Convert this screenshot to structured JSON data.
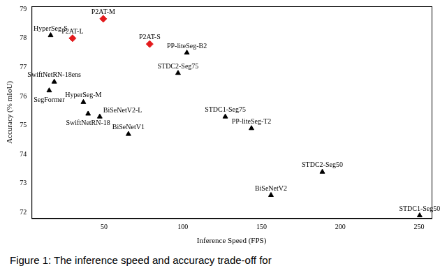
{
  "chart_data": {
    "type": "scatter",
    "x_label": "Inference Speed (FPS)",
    "y_label": "Accuracy (% mIoU)",
    "caption": "Figure 1: The inference speed and accuracy trade-off for",
    "xlim": [
      4,
      258
    ],
    "xticks": [
      50,
      100,
      150,
      200,
      250
    ],
    "ylim": [
      71.8,
      79.1
    ],
    "yticks": [
      72,
      73,
      74,
      75,
      76,
      77,
      78,
      79
    ],
    "grid": false,
    "points": [
      {
        "label": "HyperSeg-S",
        "x": 16.1,
        "y": 78.1,
        "color": "#000000",
        "marker": "triangle"
      },
      {
        "label": "P2AT-L",
        "x": 30,
        "y": 78.0,
        "color": "#e31a1c",
        "marker": "diamond"
      },
      {
        "label": "P2AT-M",
        "x": 49.5,
        "y": 78.67,
        "color": "#e31a1c",
        "marker": "diamond"
      },
      {
        "label": "P2AT-S",
        "x": 79,
        "y": 77.8,
        "color": "#e31a1c",
        "marker": "diamond"
      },
      {
        "label": "PP-liteSeg-B2",
        "x": 102.6,
        "y": 77.5,
        "color": "#000000",
        "marker": "triangle"
      },
      {
        "label": "STDC2-Seg75",
        "x": 97,
        "y": 76.8,
        "color": "#000000",
        "marker": "triangle"
      },
      {
        "label": "SwiftNetRN-18ens",
        "x": 18.4,
        "y": 76.5,
        "color": "#000000",
        "marker": "triangle"
      },
      {
        "label": "SegFormer",
        "x": 15.2,
        "y": 76.2,
        "color": "#000000",
        "marker": "triangle"
      },
      {
        "label": "HyperSeg-M",
        "x": 36.9,
        "y": 75.8,
        "color": "#000000",
        "marker": "triangle"
      },
      {
        "label": "BiSeNetV2-L",
        "x": 47.3,
        "y": 75.3,
        "color": "#000000",
        "marker": "triangle"
      },
      {
        "label": "SwiftNetRN-18",
        "x": 39.9,
        "y": 75.4,
        "color": "#000000",
        "marker": "triangle"
      },
      {
        "label": "BiSeNetV1",
        "x": 65.5,
        "y": 74.7,
        "color": "#000000",
        "marker": "triangle"
      },
      {
        "label": "STDC1-Seg75",
        "x": 127,
        "y": 75.3,
        "color": "#000000",
        "marker": "triangle"
      },
      {
        "label": "PP-liteSeg-T2",
        "x": 143.6,
        "y": 74.9,
        "color": "#000000",
        "marker": "triangle"
      },
      {
        "label": "STDC2-Seg50",
        "x": 188.6,
        "y": 73.4,
        "color": "#000000",
        "marker": "triangle"
      },
      {
        "label": "BiSeNetV2",
        "x": 156,
        "y": 72.6,
        "color": "#000000",
        "marker": "triangle"
      },
      {
        "label": "STDC1-Seg50",
        "x": 250.4,
        "y": 71.9,
        "color": "#000000",
        "marker": "triangle"
      }
    ]
  }
}
